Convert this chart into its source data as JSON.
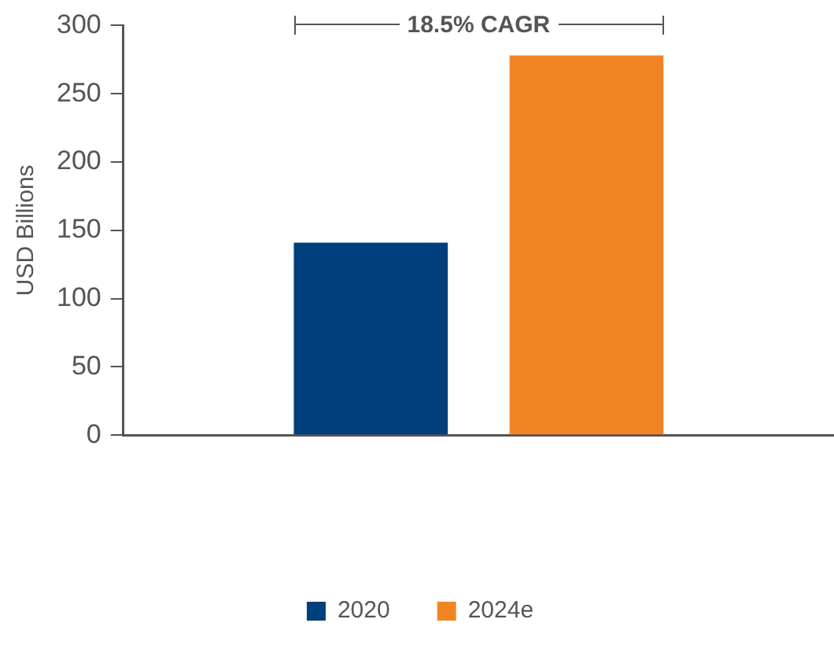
{
  "chart_data": {
    "type": "bar",
    "ylabel": "USD Billions",
    "categories": [
      null
    ],
    "series": [
      {
        "name": "2020",
        "color": "#003f7d",
        "values": [
          141
        ]
      },
      {
        "name": "2024e",
        "color": "#f28523",
        "values": [
          278
        ]
      }
    ],
    "ylim": [
      0,
      300
    ],
    "yticks": [
      0,
      50,
      100,
      150,
      200,
      250,
      300
    ],
    "grid": false,
    "legend": "bottom",
    "annotations": [
      "18.5% CAGR"
    ]
  }
}
